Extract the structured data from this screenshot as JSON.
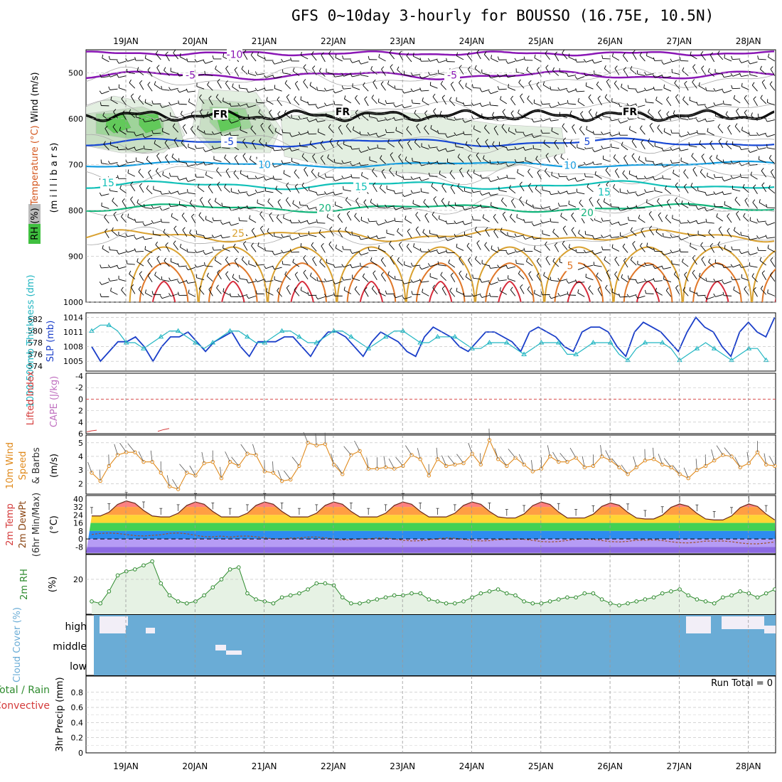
{
  "title": "GFS 0~10day 3-hourly for BOUSSO (16.75E, 10.5N)",
  "colors": {
    "purple": "#8a17b5",
    "blue": "#1747d4",
    "lightblue": "#119ce0",
    "teal": "#11c0b8",
    "green": "#11b47a",
    "gold": "#d9a130",
    "orange": "#e0782a",
    "red": "#d62b3a",
    "rh_green": "#3fbf3f",
    "cloud": "#6aacd6",
    "slp": "#1a3ec9",
    "thick": "#22b6c2",
    "wind10": "#e08a1c"
  },
  "chart_data": [
    {
      "type": "contour",
      "panel": "upper_air",
      "ylabel_parts": [
        "RH (%)",
        "Temperature (°C)",
        "Wind (m/s)"
      ],
      "ylabel_axis": "(m i l l i b a r s)",
      "yticks": [
        "500",
        "600",
        "700",
        "800",
        "900",
        "1000"
      ],
      "ylim": [
        450,
        1000
      ],
      "x_dates": [
        "19JAN",
        "20JAN",
        "21JAN",
        "22JAN",
        "23JAN",
        "24JAN",
        "25JAN",
        "26JAN",
        "27JAN",
        "28JAN"
      ],
      "contour_labels": [
        {
          "text": "-10",
          "level_mb": 460
        },
        {
          "text": "-5",
          "level_mb": 505
        },
        {
          "text": "FR",
          "level_mb": 585
        },
        {
          "text": "-5",
          "level_mb": 650
        },
        {
          "text": "10",
          "level_mb": 700
        },
        {
          "text": "15",
          "level_mb": 740
        },
        {
          "text": "20",
          "level_mb": 795
        },
        {
          "text": "25",
          "level_mb": 850
        },
        {
          "text": "5",
          "level_mb": 920
        }
      ]
    },
    {
      "type": "line",
      "panel": "slp_thickness",
      "ylabel_left": "1000-500mb Thickness (dm)",
      "ylabel_right": "SLP (mb)",
      "yticks_left": [
        "582",
        "580",
        "578",
        "576",
        "574"
      ],
      "yticks_right": [
        "1014",
        "1011",
        "1008",
        "1005"
      ],
      "series": [
        {
          "name": "SLP (mb)",
          "values": [
            1008,
            1005,
            1007,
            1009,
            1009,
            1010,
            1008,
            1005,
            1008,
            1010,
            1010,
            1011,
            1009,
            1007,
            1009,
            1010,
            1011,
            1008,
            1006,
            1009,
            1009,
            1009,
            1010,
            1010,
            1008,
            1006,
            1009,
            1011,
            1011,
            1010,
            1008,
            1006,
            1009,
            1011,
            1010,
            1009,
            1007,
            1006,
            1010,
            1012,
            1011,
            1010,
            1008,
            1007,
            1009,
            1011,
            1011,
            1010,
            1009,
            1007,
            1011,
            1012,
            1011,
            1010,
            1008,
            1007,
            1011,
            1012,
            1012,
            1011,
            1008,
            1006,
            1011,
            1013,
            1012,
            1011,
            1009,
            1007,
            1011,
            1014,
            1012,
            1011,
            1008,
            1006,
            1011,
            1013,
            1011,
            1010,
            1014
          ]
        },
        {
          "name": "Thickness (dm)",
          "values": [
            580,
            581,
            581,
            580,
            578,
            578,
            577,
            578,
            579,
            580,
            580,
            579,
            578,
            577,
            578,
            579,
            580,
            580,
            579,
            578,
            578,
            579,
            580,
            580,
            579,
            578,
            578,
            579,
            580,
            580,
            579,
            578,
            577,
            578,
            579,
            580,
            580,
            579,
            578,
            578,
            579,
            579,
            579,
            578,
            577,
            577,
            578,
            578,
            578,
            577,
            576,
            577,
            578,
            578,
            578,
            576,
            576,
            577,
            578,
            578,
            578,
            576,
            575,
            577,
            578,
            578,
            578,
            577,
            575,
            576,
            577,
            578,
            577,
            576,
            575,
            576,
            577,
            577,
            575
          ]
        }
      ]
    },
    {
      "type": "line",
      "panel": "lifted_index",
      "ylabel_parts": [
        "Lifted Index",
        "CAPE (J/kg)"
      ],
      "yticks": [
        "-4",
        "-2",
        "0",
        "2",
        "4",
        "6"
      ],
      "series": [
        {
          "name": "Lifted Index",
          "values_day_0": [
            5.7,
            5.5,
            5.4
          ],
          "values_day_1": [
            5.6,
            5.3,
            5.1
          ]
        }
      ]
    },
    {
      "type": "line",
      "panel": "wind10m",
      "ylabel_parts": [
        "10m Wind",
        "Speed",
        "& Barbs",
        "(m/s)"
      ],
      "yticks": [
        "5",
        "4",
        "3",
        "2"
      ],
      "series": [
        {
          "name": "10m Wind Speed",
          "values": [
            2.8,
            2.2,
            3.3,
            4.1,
            4.3,
            4.3,
            3.6,
            3.6,
            2.8,
            1.8,
            1.6,
            2.8,
            2.6,
            3.5,
            3.6,
            2.4,
            3.6,
            3.3,
            4.2,
            4.1,
            2.9,
            2.8,
            2.2,
            2.3,
            3.3,
            5.0,
            4.8,
            4.9,
            3.4,
            2.7,
            4.1,
            4.4,
            3.1,
            3.1,
            3.2,
            3.1,
            3.3,
            4.1,
            3.8,
            2.6,
            3.8,
            3.3,
            3.4,
            3.5,
            4.2,
            3.4,
            5.2,
            3.8,
            3.3,
            3.9,
            3.4,
            2.9,
            3.1,
            4.0,
            3.6,
            3.6,
            3.9,
            3.2,
            3.3,
            4.0,
            3.7,
            3.2,
            2.7,
            3.2,
            3.7,
            3.8,
            3.4,
            3.2,
            2.7,
            2.4,
            3.0,
            3.3,
            3.7,
            4.1,
            4.0,
            3.2,
            3.5,
            4.3,
            3.4,
            3.3
          ]
        }
      ]
    },
    {
      "type": "area",
      "panel": "temperature",
      "ylabel_parts": [
        "2m Temp",
        "2m DewPt",
        "(6hr Min/Max)",
        "(°C)"
      ],
      "yticks": [
        "40",
        "32",
        "24",
        "16",
        "8",
        "0",
        "-8"
      ],
      "series": [
        {
          "name": "2m Temp",
          "daily_max": [
            38,
            37,
            37,
            37,
            37,
            37,
            37,
            36,
            35,
            35
          ],
          "daily_min": [
            23,
            22,
            22,
            22,
            22,
            22,
            21,
            21,
            20,
            19
          ]
        },
        {
          "name": "2m DewPt",
          "daily_max": [
            6,
            6,
            3,
            2,
            1,
            1,
            0,
            0,
            -1,
            -2
          ],
          "daily_min": [
            3,
            2,
            0,
            -1,
            -2,
            -2,
            -3,
            -3,
            -4,
            -5
          ]
        }
      ]
    },
    {
      "type": "area",
      "panel": "rh2m",
      "ylabel_parts": [
        "2m RH",
        "(%)"
      ],
      "yticks": [
        "20"
      ],
      "series": [
        {
          "name": "2m RH",
          "values": [
            9,
            8,
            14,
            22,
            24,
            25,
            27,
            29,
            18,
            12,
            9,
            8,
            9,
            12,
            16,
            20,
            25,
            26,
            13,
            10,
            9,
            8,
            11,
            12,
            13,
            15,
            18,
            18,
            17,
            11,
            8,
            8,
            9,
            10,
            11,
            12,
            12,
            13,
            13,
            10,
            9,
            8,
            8,
            9,
            11,
            13,
            14,
            15,
            13,
            12,
            9,
            8,
            8,
            9,
            10,
            11,
            11,
            13,
            13,
            10,
            8,
            7,
            8,
            9,
            10,
            11,
            13,
            14,
            15,
            12,
            10,
            9,
            8,
            11,
            12,
            14,
            13,
            11,
            13,
            15
          ]
        }
      ]
    },
    {
      "type": "heatmap",
      "panel": "cloud",
      "ylabel": "Cloud Cover (%)",
      "row_labels": [
        "high",
        "middle",
        "low"
      ]
    },
    {
      "type": "bar",
      "panel": "precip",
      "ylabel_parts": [
        "Total / Rain",
        "Convective",
        "3hr Precip (mm)"
      ],
      "yticks": [
        "0.8",
        "0.6",
        "0.4",
        "0.2",
        "0"
      ],
      "run_total": "Run Total = 0",
      "values": []
    }
  ]
}
